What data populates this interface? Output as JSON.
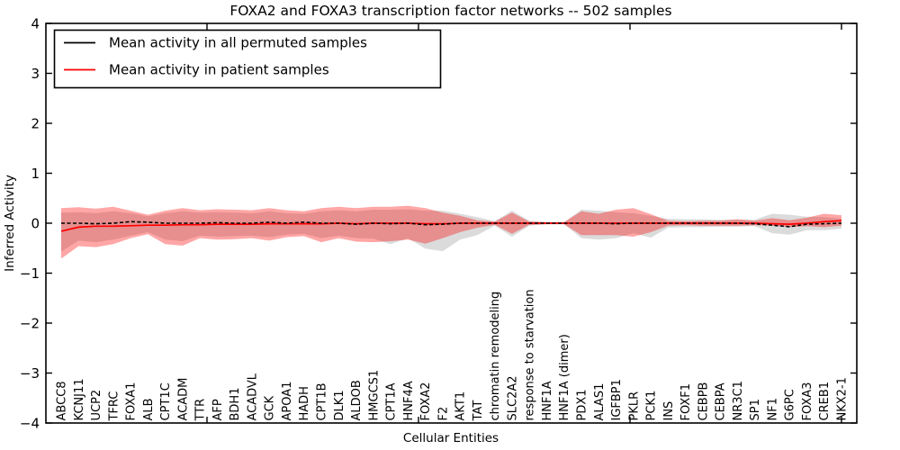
{
  "title": "FOXA2 and FOXA3 transcription factor networks -- 502 samples",
  "axes": {
    "ylabel": "Inferred Activity",
    "xlabel": "Cellular Entities"
  },
  "legend": {
    "items": [
      {
        "label": "Mean activity in all permuted samples",
        "color": "#000000"
      },
      {
        "label": "Mean activity in patient samples",
        "color": "#ff0000"
      }
    ]
  },
  "colors": {
    "permuted_line": "#000000",
    "patient_line": "#ff0000",
    "permuted_band": "#000000",
    "patient_band": "#ff0000",
    "frame": "#000000",
    "background": "#ffffff"
  },
  "chart_data": {
    "type": "line",
    "title": "FOXA2 and FOXA3 transcription factor networks -- 502 samples",
    "xlabel": "Cellular Entities",
    "ylabel": "Inferred Activity",
    "ylim": [
      -4,
      4
    ],
    "yticks": [
      4,
      3,
      2,
      1,
      0,
      -1,
      -2,
      -3,
      -4
    ],
    "grid": false,
    "legend_position": "upper left",
    "categories": [
      "ABCC8",
      "KCNJ11",
      "UCP2",
      "TFRC",
      "FOXA1",
      "ALB",
      "CPT1C",
      "ACADM",
      "TTR",
      "AFP",
      "BDH1",
      "ACADVL",
      "GCK",
      "APOA1",
      "HADH",
      "CPT1B",
      "DLK1",
      "ALDOB",
      "HMGCS1",
      "CPT1A",
      "HNF4A",
      "FOXA2",
      "F2",
      "AKT1",
      "TAT",
      "chromatin remodeling",
      "SLC2A2",
      "response to starvation",
      "HNF1A",
      "HNF1A (dimer)",
      "PDX1",
      "ALAS1",
      "IGFBP1",
      "PKLR",
      "PCK1",
      "INS",
      "FOXF1",
      "CEBPB",
      "CEBPA",
      "NR3C1",
      "SP1",
      "NF1",
      "G6PC",
      "FOXA3",
      "CREB1",
      "NKX2-1"
    ],
    "series": [
      {
        "name": "Mean activity in all permuted samples",
        "color": "#000000",
        "style": "dashed",
        "values": [
          0.0,
          0.0,
          -0.01,
          0.0,
          0.03,
          0.02,
          0.0,
          0.0,
          0.0,
          0.01,
          0.0,
          0.0,
          0.02,
          0.0,
          0.02,
          0.0,
          0.0,
          -0.02,
          0.0,
          -0.01,
          0.0,
          -0.03,
          -0.02,
          0.0,
          0.0,
          0.0,
          0.0,
          0.0,
          0.0,
          0.0,
          0.0,
          0.0,
          -0.01,
          0.0,
          0.0,
          0.0,
          0.0,
          0.0,
          0.0,
          0.0,
          -0.01,
          -0.04,
          -0.07,
          -0.02,
          -0.01,
          0.0
        ]
      },
      {
        "name": "Mean activity in patient samples",
        "color": "#ff0000",
        "style": "solid",
        "values": [
          -0.16,
          -0.08,
          -0.06,
          -0.06,
          -0.05,
          -0.04,
          -0.04,
          -0.03,
          -0.03,
          -0.02,
          -0.02,
          -0.02,
          -0.01,
          -0.01,
          -0.01,
          -0.01,
          0.0,
          -0.01,
          0.0,
          0.0,
          0.0,
          -0.01,
          -0.01,
          0.0,
          0.0,
          0.0,
          0.0,
          0.0,
          0.0,
          0.0,
          0.0,
          0.0,
          0.0,
          0.0,
          0.0,
          0.0,
          0.0,
          0.0,
          0.0,
          0.0,
          0.0,
          -0.01,
          -0.02,
          0.0,
          0.03,
          0.05
        ]
      }
    ],
    "bands": [
      {
        "name": "permuted samples range",
        "color": "#000000",
        "opacity": 0.14,
        "upper": [
          0.21,
          0.22,
          0.2,
          0.24,
          0.2,
          0.14,
          0.2,
          0.24,
          0.21,
          0.22,
          0.21,
          0.2,
          0.24,
          0.2,
          0.19,
          0.24,
          0.26,
          0.24,
          0.27,
          0.27,
          0.28,
          0.25,
          0.25,
          0.19,
          0.12,
          0.04,
          0.25,
          0.05,
          0.02,
          0.02,
          0.27,
          0.25,
          0.22,
          0.2,
          0.15,
          0.09,
          0.08,
          0.08,
          0.07,
          0.07,
          0.07,
          0.19,
          0.17,
          0.13,
          0.12,
          0.09
        ],
        "lower": [
          -0.57,
          -0.35,
          -0.38,
          -0.33,
          -0.25,
          -0.18,
          -0.33,
          -0.36,
          -0.25,
          -0.27,
          -0.26,
          -0.25,
          -0.28,
          -0.23,
          -0.21,
          -0.3,
          -0.25,
          -0.3,
          -0.31,
          -0.42,
          -0.3,
          -0.51,
          -0.56,
          -0.33,
          -0.24,
          -0.05,
          -0.27,
          -0.05,
          -0.02,
          -0.02,
          -0.3,
          -0.33,
          -0.3,
          -0.2,
          -0.29,
          -0.09,
          -0.08,
          -0.08,
          -0.07,
          -0.07,
          -0.06,
          -0.2,
          -0.23,
          -0.14,
          -0.14,
          -0.11
        ]
      },
      {
        "name": "patient samples range",
        "color": "#ff0000",
        "opacity": 0.35,
        "upper": [
          0.3,
          0.32,
          0.29,
          0.33,
          0.25,
          0.17,
          0.25,
          0.3,
          0.26,
          0.28,
          0.27,
          0.26,
          0.3,
          0.26,
          0.24,
          0.3,
          0.33,
          0.3,
          0.33,
          0.33,
          0.35,
          0.3,
          0.21,
          0.15,
          0.06,
          0.03,
          0.21,
          0.03,
          0.02,
          0.02,
          0.24,
          0.19,
          0.27,
          0.3,
          0.18,
          0.05,
          0.04,
          0.05,
          0.05,
          0.08,
          0.05,
          0.1,
          0.06,
          0.11,
          0.19,
          0.16
        ],
        "lower": [
          -0.71,
          -0.46,
          -0.48,
          -0.42,
          -0.3,
          -0.22,
          -0.42,
          -0.45,
          -0.3,
          -0.33,
          -0.32,
          -0.3,
          -0.35,
          -0.28,
          -0.26,
          -0.38,
          -0.3,
          -0.37,
          -0.38,
          -0.36,
          -0.33,
          -0.41,
          -0.3,
          -0.18,
          -0.09,
          -0.03,
          -0.21,
          -0.03,
          -0.02,
          -0.02,
          -0.24,
          -0.24,
          -0.24,
          -0.27,
          -0.18,
          -0.05,
          -0.04,
          -0.05,
          -0.05,
          -0.05,
          -0.04,
          -0.05,
          -0.08,
          -0.06,
          -0.08,
          -0.05
        ]
      }
    ],
    "top_axis_tick_x": [
      230,
      465,
      700,
      935
    ]
  }
}
